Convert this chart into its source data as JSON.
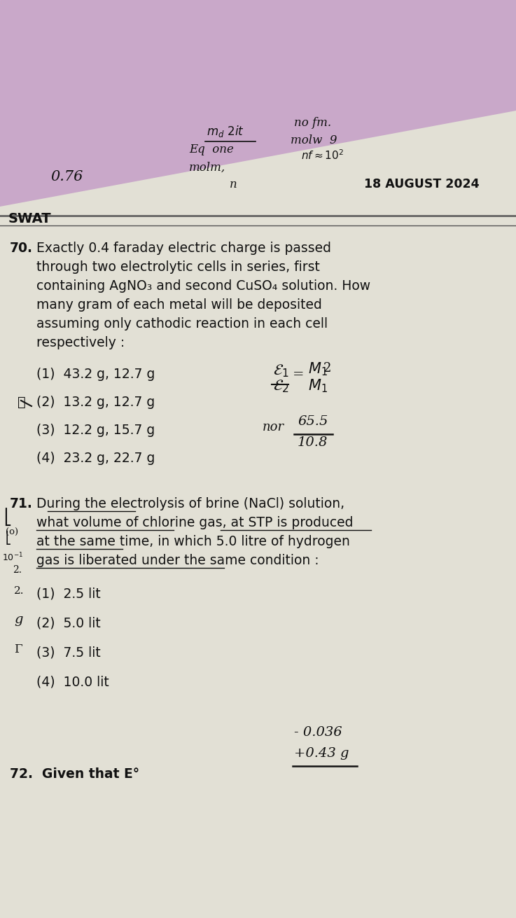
{
  "bg_color": "#c9a8c9",
  "paper_color": "#e5e3d8",
  "paper_color2": "#dddbd0",
  "text_color": "#111111",
  "hand_color": "#111111",
  "date_text": "18 AUGUST 2024",
  "swat_text": "SWAT",
  "q70_lines": [
    "Exactly 0.4 faraday electric charge is passed",
    "through two electrolytic cells in series, first",
    "containing AgNO₃ and second CuSO₄ solution. How",
    "many gram of each metal will be deposited",
    "assuming only cathodic reaction in each cell",
    "respectively :"
  ],
  "q70_opts": [
    "(1)  43.2 g, 12.7 g",
    "(2)  13.2 g, 12.7 g",
    "(3)  12.2 g, 15.7 g",
    "(4)  23.2 g, 22.7 g"
  ],
  "q71_lines": [
    "During the electrolysis of brine (NaCl) solution,",
    "what volume of chlorine gas, at STP is produced",
    "at the same time, in which 5.0 litre of hydrogen",
    "gas is liberated under the same condition :"
  ],
  "q71_opts": [
    "(1)  2.5 lit",
    "(2)  5.0 lit",
    "(3)  7.5 lit",
    "(4)  10.0 lit"
  ],
  "q72_start": "72.  Given that E°",
  "body_fs": 13.5,
  "opt_fs": 13.0,
  "num_fs": 13.5
}
